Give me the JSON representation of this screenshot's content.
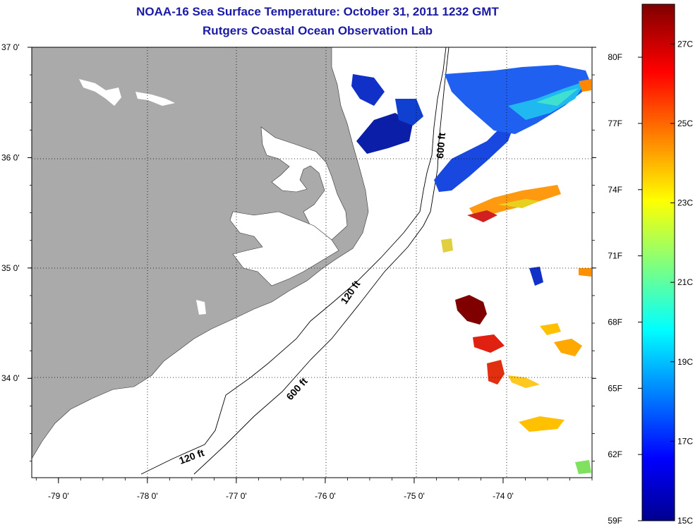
{
  "title_line1": "NOAA-16 Sea Surface Temperature:  October 31, 2011 1232 GMT",
  "title_line2": "Rutgers Coastal Ocean Observation Lab",
  "map": {
    "lat_labels": [
      {
        "lat": 37,
        "text": "37 0'"
      },
      {
        "lat": 36,
        "text": "36 0'"
      },
      {
        "lat": 35,
        "text": "35 0'"
      },
      {
        "lat": 34,
        "text": "34 0'"
      }
    ],
    "lon_labels": [
      {
        "lon": -79,
        "text": "-79 0'"
      },
      {
        "lon": -78,
        "text": "-78 0'"
      },
      {
        "lon": -77,
        "text": "-77 0'"
      },
      {
        "lon": -76,
        "text": "-76 0'"
      },
      {
        "lon": -75,
        "text": "-75 0'"
      },
      {
        "lon": -74,
        "text": "-74 0'"
      }
    ],
    "extent": {
      "lon": [
        -79.3,
        -73.0
      ],
      "lat": [
        33.1,
        37.0
      ]
    },
    "depth_labels": [
      "600 ft",
      "120 ft",
      "600 ft",
      "120 ft"
    ],
    "colors": {
      "land": "#aaaaaa",
      "water": "#ffffff",
      "title": "#1a1aa6"
    }
  },
  "colorbar": {
    "min_c": 15,
    "max_c": 28,
    "f_labels": [
      "80F",
      "77F",
      "74F",
      "71F",
      "68F",
      "65F",
      "62F",
      "59F"
    ],
    "f_values": [
      80,
      77,
      74,
      71,
      68,
      65,
      62,
      59
    ],
    "c_labels": [
      "27C",
      "25C",
      "23C",
      "21C",
      "19C",
      "17C",
      "15C"
    ],
    "c_values": [
      27,
      25,
      23,
      21,
      19,
      17,
      15
    ]
  }
}
